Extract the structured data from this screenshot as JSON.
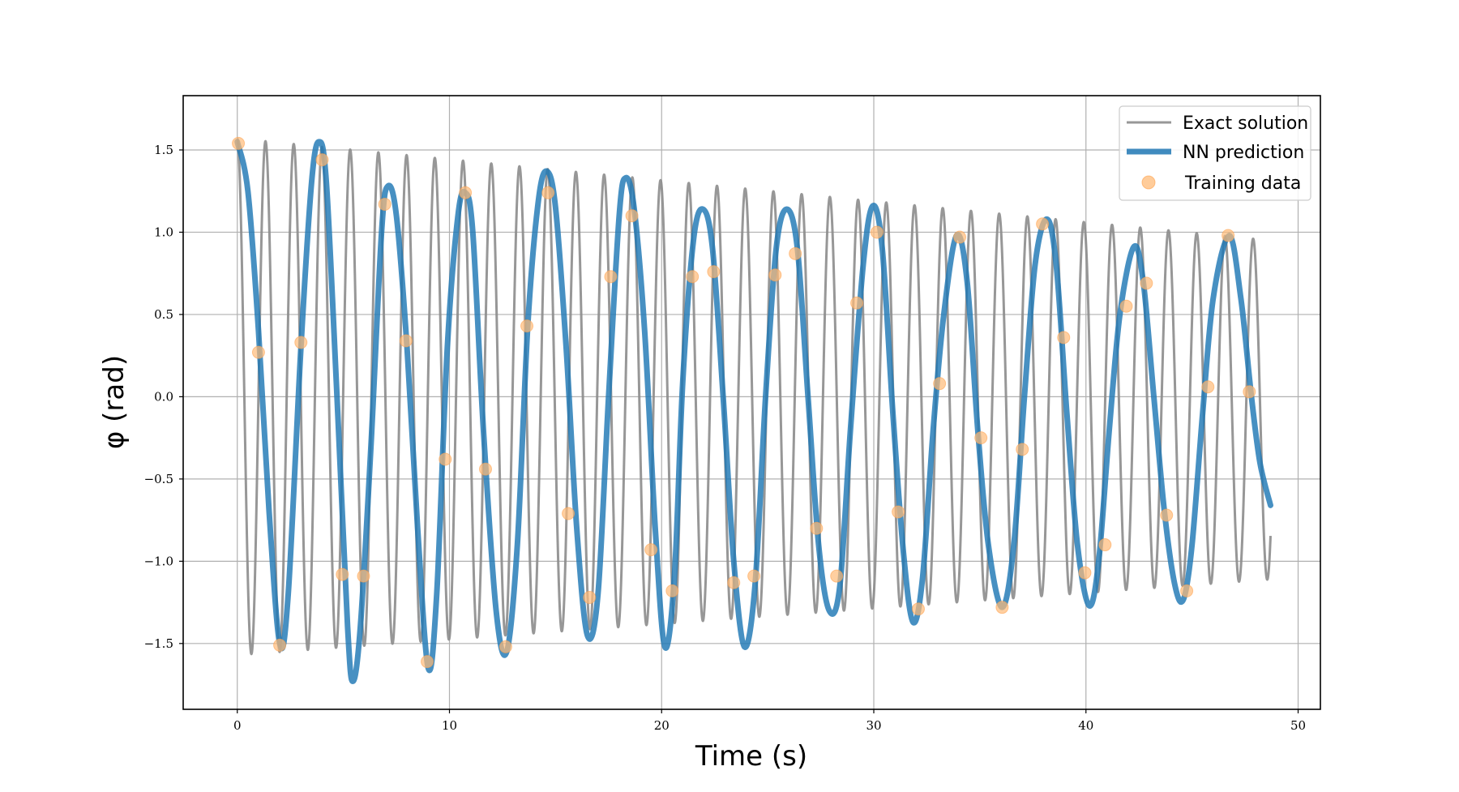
{
  "chart_data": {
    "type": "line",
    "xlabel": "Time (s)",
    "ylabel": "φ (rad)",
    "xlim": [
      -2.55,
      51.05
    ],
    "ylim": [
      -1.9,
      1.83
    ],
    "xticks": [
      0,
      10,
      20,
      30,
      40,
      50
    ],
    "xtick_labels": [
      "0",
      "10",
      "20",
      "30",
      "40",
      "50"
    ],
    "yticks": [
      1.5,
      1.0,
      0.5,
      0.0,
      -0.5,
      -1.0,
      -1.5
    ],
    "ytick_labels": [
      "1.5",
      "1.0",
      "0.5",
      "0.0",
      "−0.5",
      "−1.0",
      "−1.5"
    ],
    "grid": true,
    "legend_position": "top-right",
    "series": [
      {
        "name": "Exact solution",
        "kind": "line",
        "color": "#8c8c8c",
        "t_start": 0,
        "t_end": 48.7,
        "samples": 6000,
        "approx_model": {
          "amplitude_start": 1.57,
          "amplitude_end": 1.03,
          "period": 1.33,
          "offset": -0.08
        }
      },
      {
        "name": "NN prediction",
        "kind": "line",
        "color": "#1f77b4",
        "points": [
          [
            0.0,
            1.55
          ],
          [
            0.5,
            1.25
          ],
          [
            1.0,
            0.4
          ],
          [
            1.5,
            -0.7
          ],
          [
            2.0,
            -1.5
          ],
          [
            2.4,
            -1.2
          ],
          [
            3.0,
            0.3
          ],
          [
            3.5,
            1.3
          ],
          [
            3.85,
            1.55
          ],
          [
            4.2,
            1.3
          ],
          [
            4.7,
            0.0
          ],
          [
            5.2,
            -1.4
          ],
          [
            5.45,
            -1.73
          ],
          [
            5.8,
            -1.4
          ],
          [
            6.3,
            -0.3
          ],
          [
            6.8,
            1.0
          ],
          [
            7.1,
            1.28
          ],
          [
            7.5,
            1.1
          ],
          [
            8.0,
            0.3
          ],
          [
            8.5,
            -0.8
          ],
          [
            9.0,
            -1.65
          ],
          [
            9.4,
            -1.2
          ],
          [
            9.9,
            0.3
          ],
          [
            10.4,
            1.1
          ],
          [
            10.75,
            1.24
          ],
          [
            11.1,
            1.0
          ],
          [
            11.6,
            -0.2
          ],
          [
            12.2,
            -1.3
          ],
          [
            12.7,
            -1.55
          ],
          [
            13.2,
            -0.9
          ],
          [
            13.7,
            0.45
          ],
          [
            14.2,
            1.2
          ],
          [
            14.6,
            1.37
          ],
          [
            15.0,
            1.15
          ],
          [
            15.5,
            0.3
          ],
          [
            16.0,
            -0.8
          ],
          [
            16.5,
            -1.45
          ],
          [
            17.0,
            -1.2
          ],
          [
            17.5,
            0.0
          ],
          [
            18.0,
            1.1
          ],
          [
            18.3,
            1.33
          ],
          [
            18.7,
            1.15
          ],
          [
            19.2,
            0.4
          ],
          [
            19.7,
            -0.8
          ],
          [
            20.15,
            -1.52
          ],
          [
            20.6,
            -1.1
          ],
          [
            21.0,
            0.1
          ],
          [
            21.5,
            0.95
          ],
          [
            21.95,
            1.14
          ],
          [
            22.4,
            0.9
          ],
          [
            22.9,
            0.0
          ],
          [
            23.4,
            -1.0
          ],
          [
            23.9,
            -1.52
          ],
          [
            24.4,
            -1.15
          ],
          [
            24.9,
            0.0
          ],
          [
            25.4,
            0.9
          ],
          [
            25.9,
            1.14
          ],
          [
            26.4,
            0.9
          ],
          [
            26.9,
            0.0
          ],
          [
            27.4,
            -0.9
          ],
          [
            27.9,
            -1.3
          ],
          [
            28.4,
            -1.15
          ],
          [
            28.9,
            -0.2
          ],
          [
            29.5,
            0.8
          ],
          [
            29.95,
            1.16
          ],
          [
            30.4,
            0.9
          ],
          [
            30.9,
            -0.1
          ],
          [
            31.4,
            -0.95
          ],
          [
            31.85,
            -1.37
          ],
          [
            32.3,
            -1.1
          ],
          [
            32.8,
            -0.2
          ],
          [
            33.3,
            0.5
          ],
          [
            33.9,
            0.98
          ],
          [
            34.4,
            0.7
          ],
          [
            34.9,
            -0.2
          ],
          [
            35.4,
            -0.9
          ],
          [
            36.05,
            -1.28
          ],
          [
            36.6,
            -0.9
          ],
          [
            37.1,
            0.0
          ],
          [
            37.6,
            0.8
          ],
          [
            38.15,
            1.08
          ],
          [
            38.6,
            0.8
          ],
          [
            39.1,
            -0.1
          ],
          [
            39.6,
            -0.9
          ],
          [
            40.15,
            -1.27
          ],
          [
            40.6,
            -1.0
          ],
          [
            41.1,
            -0.2
          ],
          [
            41.6,
            0.5
          ],
          [
            42.25,
            0.91
          ],
          [
            42.7,
            0.7
          ],
          [
            43.2,
            0.0
          ],
          [
            43.7,
            -0.7
          ],
          [
            44.2,
            -1.15
          ],
          [
            44.6,
            -1.23
          ],
          [
            45.0,
            -0.9
          ],
          [
            45.5,
            -0.1
          ],
          [
            46.0,
            0.6
          ],
          [
            46.75,
            0.98
          ],
          [
            47.3,
            0.6
          ],
          [
            47.8,
            0.0
          ],
          [
            48.2,
            -0.4
          ],
          [
            48.7,
            -0.66
          ]
        ]
      },
      {
        "name": "Training data",
        "kind": "scatter",
        "color": "#ffbb78",
        "points": [
          [
            0.05,
            1.54
          ],
          [
            1.0,
            0.27
          ],
          [
            2.0,
            -1.51
          ],
          [
            3.0,
            0.33
          ],
          [
            4.0,
            1.44
          ],
          [
            4.95,
            -1.08
          ],
          [
            5.95,
            -1.09
          ],
          [
            6.95,
            1.17
          ],
          [
            7.95,
            0.34
          ],
          [
            8.95,
            -1.61
          ],
          [
            9.8,
            -0.38
          ],
          [
            10.75,
            1.24
          ],
          [
            11.7,
            -0.44
          ],
          [
            12.65,
            -1.52
          ],
          [
            13.65,
            0.43
          ],
          [
            14.65,
            1.24
          ],
          [
            15.6,
            -0.71
          ],
          [
            16.6,
            -1.22
          ],
          [
            17.6,
            0.73
          ],
          [
            18.6,
            1.1
          ],
          [
            19.5,
            -0.93
          ],
          [
            20.5,
            -1.18
          ],
          [
            21.45,
            0.73
          ],
          [
            22.45,
            0.76
          ],
          [
            23.4,
            -1.13
          ],
          [
            24.35,
            -1.09
          ],
          [
            25.35,
            0.74
          ],
          [
            26.3,
            0.87
          ],
          [
            27.3,
            -0.8
          ],
          [
            28.25,
            -1.09
          ],
          [
            29.2,
            0.57
          ],
          [
            30.15,
            1.0
          ],
          [
            31.15,
            -0.7
          ],
          [
            32.1,
            -1.29
          ],
          [
            33.1,
            0.08
          ],
          [
            34.05,
            0.97
          ],
          [
            35.05,
            -0.25
          ],
          [
            36.05,
            -1.28
          ],
          [
            37.0,
            -0.32
          ],
          [
            37.95,
            1.05
          ],
          [
            38.95,
            0.36
          ],
          [
            39.95,
            -1.07
          ],
          [
            40.9,
            -0.9
          ],
          [
            41.9,
            0.55
          ],
          [
            42.85,
            0.69
          ],
          [
            43.8,
            -0.72
          ],
          [
            44.75,
            -1.18
          ],
          [
            45.75,
            0.06
          ],
          [
            46.7,
            0.98
          ],
          [
            47.7,
            0.03
          ]
        ]
      }
    ]
  }
}
